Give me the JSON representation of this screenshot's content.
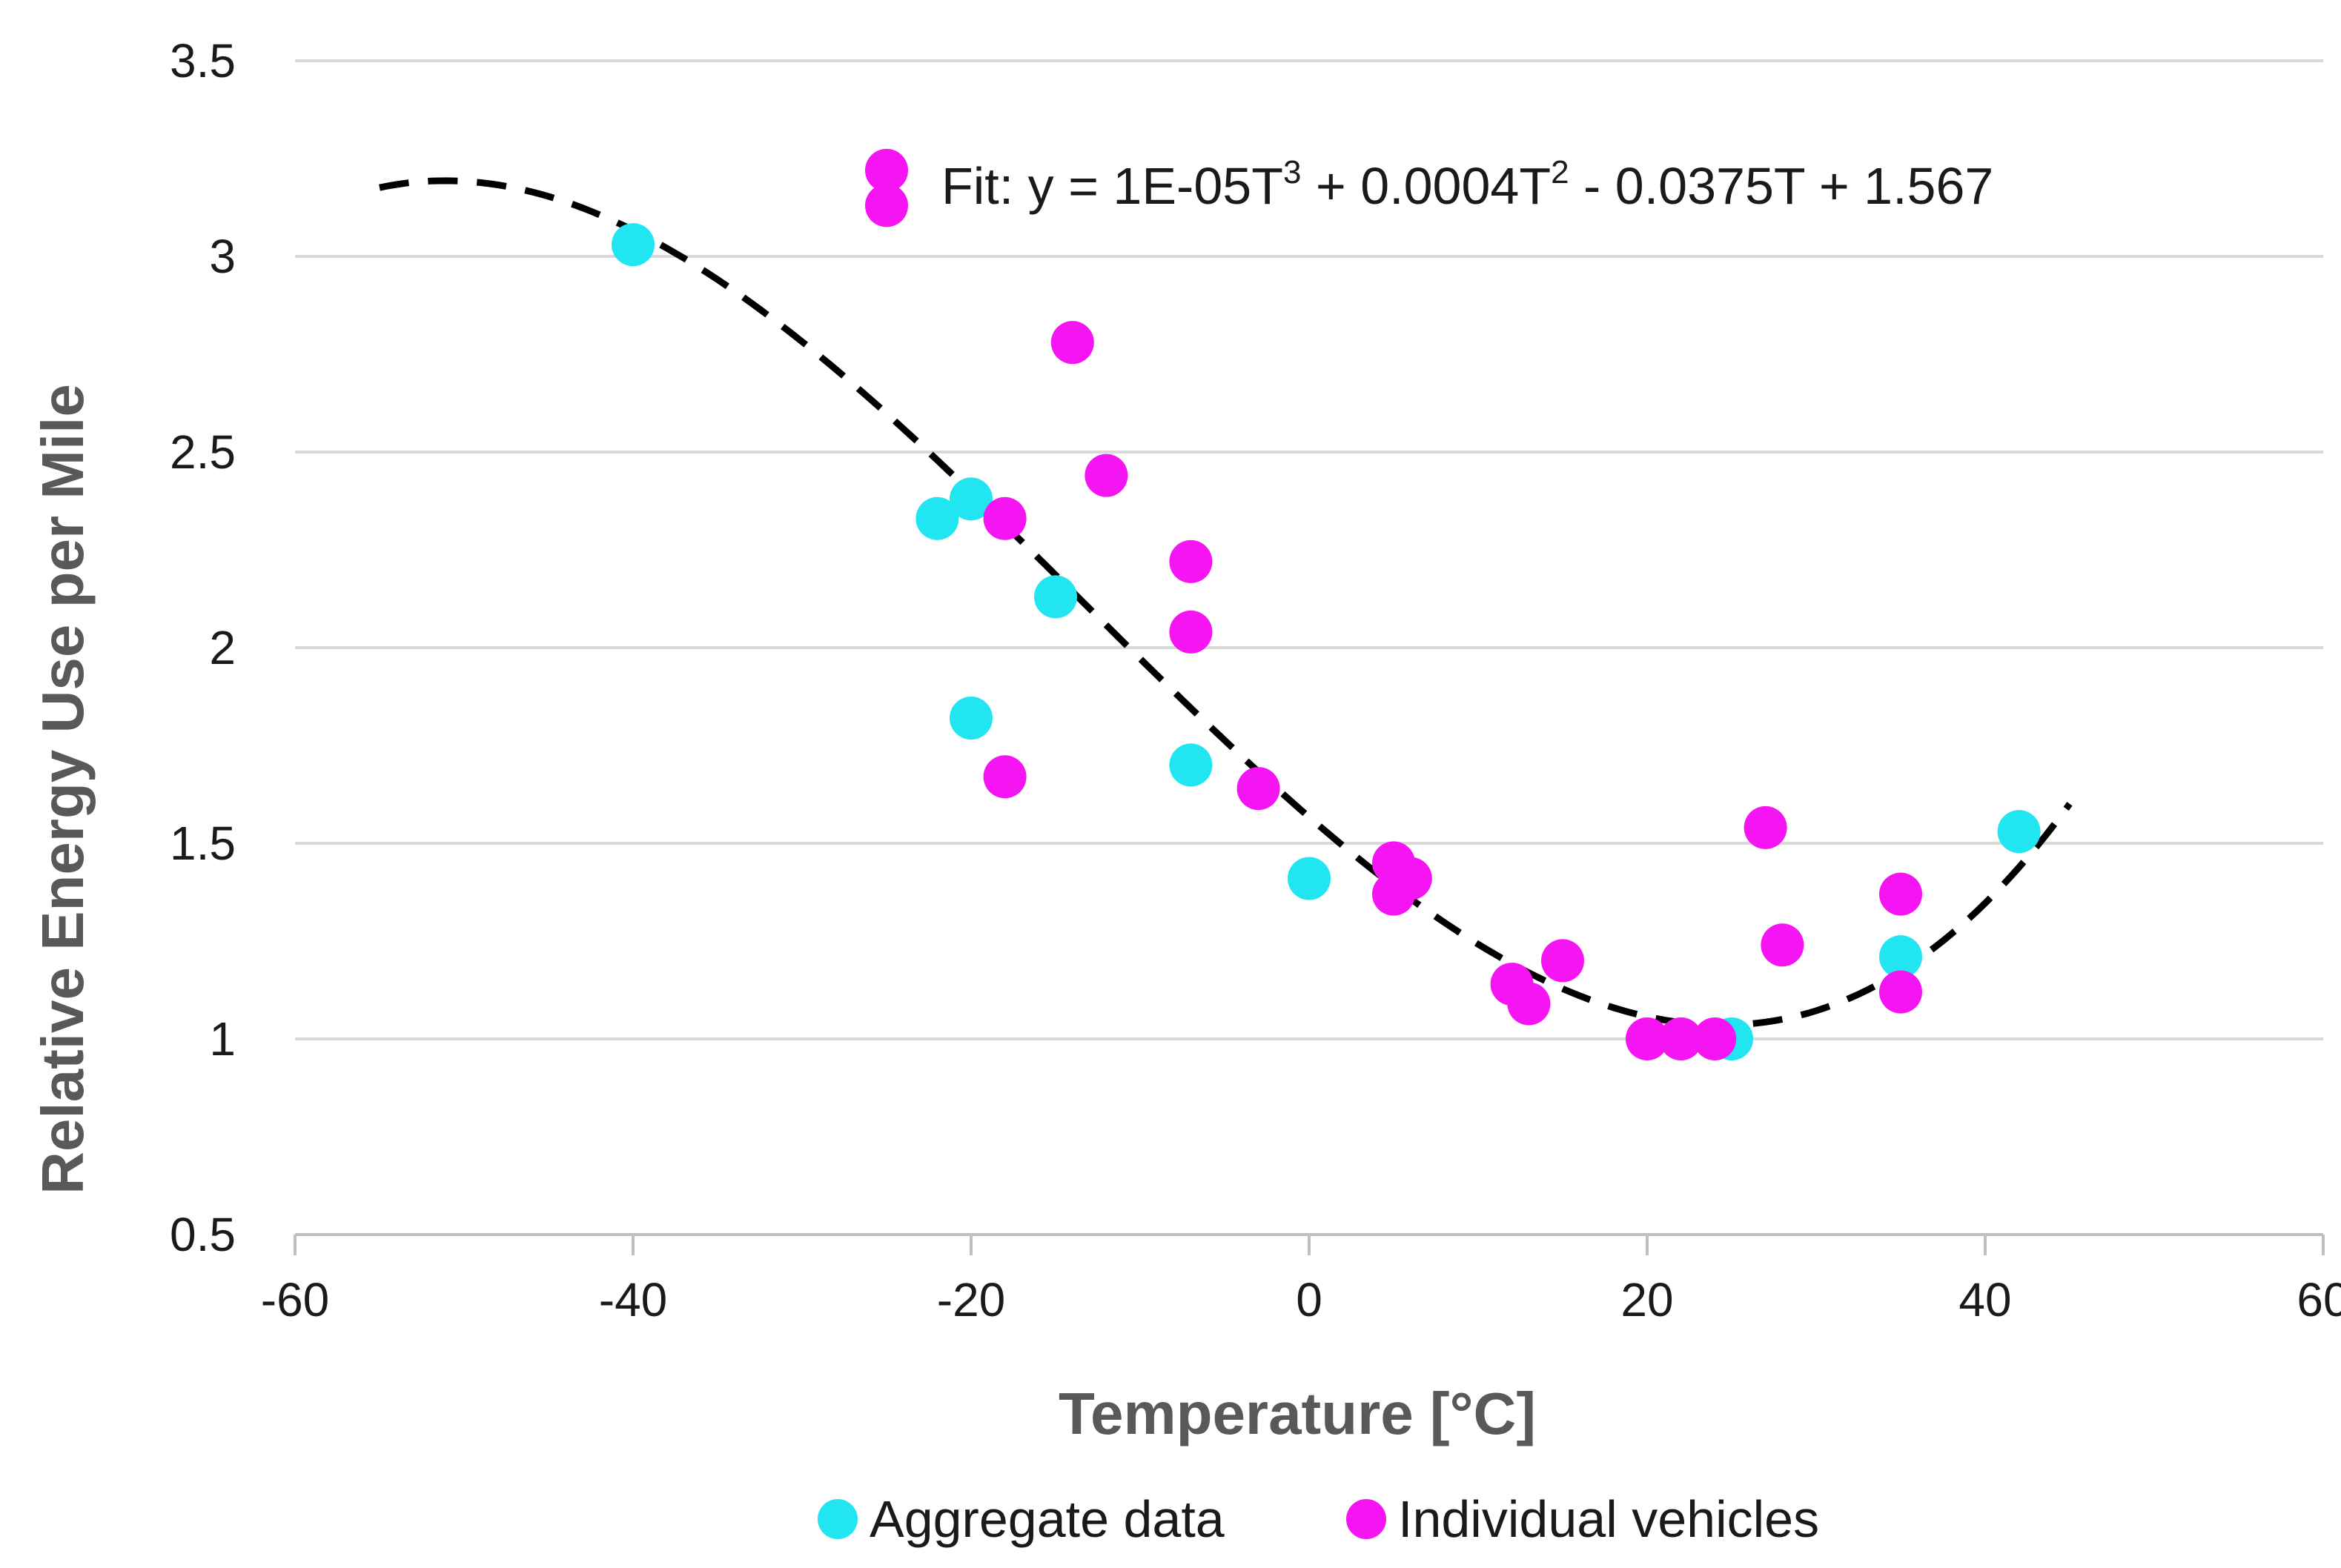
{
  "chart_data": {
    "type": "scatter",
    "title": "",
    "xlabel": "Temperature [°C]",
    "ylabel": "Relative Energy Use per Mile",
    "xlim": [
      -60,
      60
    ],
    "ylim": [
      0.5,
      3.5
    ],
    "x_ticks": [
      "-60",
      "-40",
      "-20",
      "0",
      "20",
      "40",
      "60"
    ],
    "y_ticks": [
      "0.5",
      "1",
      "1.5",
      "2",
      "2.5",
      "3",
      "3.5"
    ],
    "gridlines": "horizontal",
    "legend_position": "bottom",
    "colors": {
      "aggregate": "#22e5f2",
      "individual": "#f514f2",
      "fit": "#000000"
    },
    "series": [
      {
        "name": "Aggregate data",
        "color": "#22e5f2",
        "points": [
          {
            "x": -40,
            "y": 3.03
          },
          {
            "x": -22,
            "y": 2.33
          },
          {
            "x": -20,
            "y": 2.38
          },
          {
            "x": -20,
            "y": 1.82
          },
          {
            "x": -15,
            "y": 2.13
          },
          {
            "x": -7,
            "y": 1.7
          },
          {
            "x": 0,
            "y": 1.41
          },
          {
            "x": 22,
            "y": 1.0
          },
          {
            "x": 25,
            "y": 1.0
          },
          {
            "x": 35,
            "y": 1.21
          },
          {
            "x": 42,
            "y": 1.53
          }
        ]
      },
      {
        "name": "Individual vehicles",
        "color": "#f514f2",
        "points": [
          {
            "x": -25,
            "y": 3.22
          },
          {
            "x": -25,
            "y": 3.13
          },
          {
            "x": -14,
            "y": 2.78
          },
          {
            "x": -12,
            "y": 2.44
          },
          {
            "x": -18,
            "y": 2.33
          },
          {
            "x": -7,
            "y": 2.22
          },
          {
            "x": -7,
            "y": 2.04
          },
          {
            "x": -18,
            "y": 1.67
          },
          {
            "x": -3,
            "y": 1.64
          },
          {
            "x": 5,
            "y": 1.45
          },
          {
            "x": 6,
            "y": 1.41
          },
          {
            "x": 5,
            "y": 1.37
          },
          {
            "x": 15,
            "y": 1.2
          },
          {
            "x": 12,
            "y": 1.14
          },
          {
            "x": 13,
            "y": 1.09
          },
          {
            "x": 20,
            "y": 1.0
          },
          {
            "x": 22,
            "y": 1.0
          },
          {
            "x": 24,
            "y": 1.0
          },
          {
            "x": 27,
            "y": 1.54
          },
          {
            "x": 28,
            "y": 1.24
          },
          {
            "x": 35,
            "y": 1.37
          },
          {
            "x": 35,
            "y": 1.12
          }
        ]
      }
    ],
    "fit": {
      "label_prefix": "Fit: y = 1E-05T",
      "sup1": "3",
      "mid": " + 0.0004T",
      "sup2": "2",
      "suffix": " - 0.0375T + 1.567",
      "coefficients": [
        1e-05,
        0.0004,
        -0.0375,
        1.567
      ],
      "x_range": [
        -55,
        45
      ],
      "style": "dashed"
    }
  }
}
